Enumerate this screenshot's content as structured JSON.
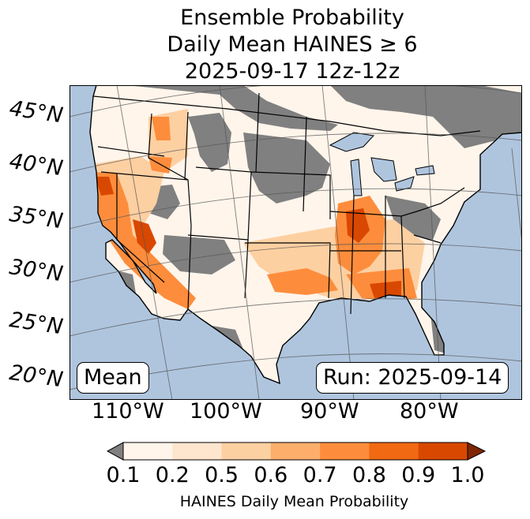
{
  "title": {
    "line1": "Ensemble Probability",
    "line2": "Daily Mean HAINES ≥ 6",
    "line3": "2025-09-17 12z-12z"
  },
  "map": {
    "lat_labels": [
      "45°N",
      "40°N",
      "35°N",
      "30°N",
      "25°N",
      "20°N"
    ],
    "lon_labels": [
      "110°W",
      "100°W",
      "90°W",
      "80°W"
    ],
    "ocean_color": "#afc5de",
    "masked_color": "#808080",
    "boundary_color": "#000000"
  },
  "annotations": {
    "stat": "Mean",
    "run": "Run: 2025-09-14"
  },
  "colorbar": {
    "ticks": [
      "0.1",
      "0.2",
      "0.5",
      "0.6",
      "0.7",
      "0.8",
      "0.9",
      "1.0"
    ],
    "colors": [
      "#fff5eb",
      "#fee6ce",
      "#fdd0a2",
      "#fdae6b",
      "#fd8d3c",
      "#f16913",
      "#d94801",
      "#a63603"
    ],
    "under_color": "#808080",
    "over_color": "#7f2704",
    "label": "HAINES Daily Mean Probability"
  }
}
